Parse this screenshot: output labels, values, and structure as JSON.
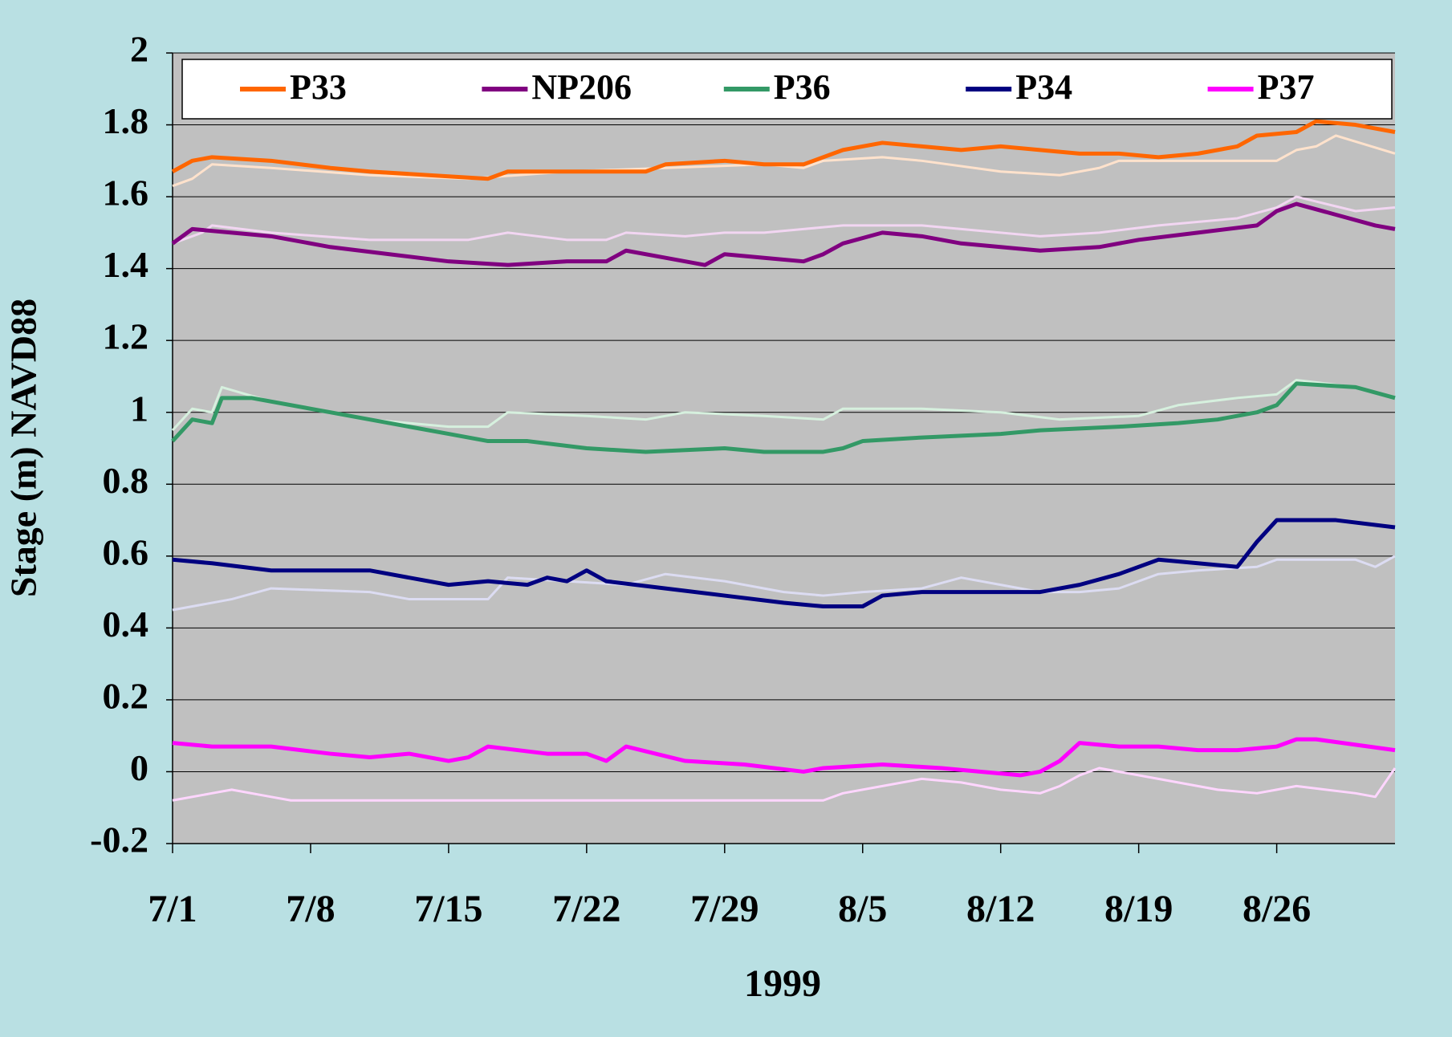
{
  "chart_data": {
    "type": "line",
    "xlabel": "1999",
    "ylabel": "Stage (m) NAVD88",
    "xlim": [
      0,
      62
    ],
    "xticks": [
      {
        "value": 0,
        "label": "7/1"
      },
      {
        "value": 7,
        "label": "7/8"
      },
      {
        "value": 14,
        "label": "7/15"
      },
      {
        "value": 21,
        "label": "7/22"
      },
      {
        "value": 28,
        "label": "7/29"
      },
      {
        "value": 35,
        "label": "8/5"
      },
      {
        "value": 42,
        "label": "8/12"
      },
      {
        "value": 49,
        "label": "8/19"
      },
      {
        "value": 56,
        "label": "8/26"
      }
    ],
    "ylim": [
      -0.2,
      2
    ],
    "yticks": [
      {
        "value": -0.2,
        "label": "-0.2"
      },
      0,
      {
        "value": 0.2,
        "label": "0.2"
      },
      {
        "value": 0.4,
        "label": "0.4"
      },
      {
        "value": 0.6,
        "label": "0.6"
      },
      {
        "value": 0.8,
        "label": "0.8"
      },
      1,
      {
        "value": 1.2,
        "label": "1.2"
      },
      {
        "value": 1.4,
        "label": "1.4"
      },
      {
        "value": 1.6,
        "label": "1.6"
      },
      {
        "value": 1.8,
        "label": "1.8"
      },
      2
    ],
    "grid": true,
    "legend": "top",
    "series": [
      {
        "name": "P33",
        "color": "#ff6600",
        "x": [
          0,
          1,
          2,
          5,
          8,
          10,
          13,
          16,
          17,
          20,
          24,
          25,
          28,
          30,
          32,
          33,
          34,
          36,
          38,
          40,
          42,
          44,
          46,
          48,
          50,
          52,
          54,
          55,
          57,
          58,
          60,
          62
        ],
        "values": [
          1.67,
          1.7,
          1.71,
          1.7,
          1.68,
          1.67,
          1.66,
          1.65,
          1.67,
          1.67,
          1.67,
          1.69,
          1.7,
          1.69,
          1.69,
          1.71,
          1.73,
          1.75,
          1.74,
          1.73,
          1.74,
          1.73,
          1.72,
          1.72,
          1.71,
          1.72,
          1.74,
          1.77,
          1.78,
          1.81,
          1.8,
          1.78
        ]
      },
      {
        "name": "NP206",
        "color": "#800080",
        "x": [
          0,
          1,
          3,
          5,
          8,
          11,
          14,
          17,
          20,
          22,
          23,
          25,
          27,
          28,
          30,
          32,
          33,
          34,
          36,
          38,
          40,
          42,
          44,
          47,
          49,
          52,
          55,
          56,
          57,
          59,
          61,
          62
        ],
        "values": [
          1.47,
          1.51,
          1.5,
          1.49,
          1.46,
          1.44,
          1.42,
          1.41,
          1.42,
          1.42,
          1.45,
          1.43,
          1.41,
          1.44,
          1.43,
          1.42,
          1.44,
          1.47,
          1.5,
          1.49,
          1.47,
          1.46,
          1.45,
          1.46,
          1.48,
          1.5,
          1.52,
          1.56,
          1.58,
          1.55,
          1.52,
          1.51
        ]
      },
      {
        "name": "P36",
        "color": "#339966",
        "x": [
          0,
          1,
          2,
          2.5,
          4,
          8,
          12,
          14,
          16,
          18,
          21,
          24,
          28,
          30,
          33,
          34,
          35,
          38,
          42,
          44,
          48,
          51,
          53,
          55,
          56,
          57,
          60,
          62
        ],
        "values": [
          0.92,
          0.98,
          0.97,
          1.04,
          1.04,
          1.0,
          0.96,
          0.94,
          0.92,
          0.92,
          0.9,
          0.89,
          0.9,
          0.89,
          0.89,
          0.9,
          0.92,
          0.93,
          0.94,
          0.95,
          0.96,
          0.97,
          0.98,
          1.0,
          1.02,
          1.08,
          1.07,
          1.04
        ]
      },
      {
        "name": "P34",
        "color": "#000080",
        "x": [
          0,
          2,
          5,
          10,
          14,
          16,
          18,
          19,
          20,
          21,
          22,
          25,
          28,
          31,
          33,
          35,
          36,
          38,
          42,
          44,
          46,
          48,
          50,
          52,
          54,
          55,
          56,
          59,
          62
        ],
        "values": [
          0.59,
          0.58,
          0.56,
          0.56,
          0.52,
          0.53,
          0.52,
          0.54,
          0.53,
          0.56,
          0.53,
          0.51,
          0.49,
          0.47,
          0.46,
          0.46,
          0.49,
          0.5,
          0.5,
          0.5,
          0.52,
          0.55,
          0.59,
          0.58,
          0.57,
          0.64,
          0.7,
          0.7,
          0.68
        ]
      },
      {
        "name": "P37",
        "color": "#ff00ff",
        "x": [
          0,
          2,
          5,
          8,
          10,
          12,
          14,
          15,
          16,
          19,
          21,
          22,
          23,
          26,
          29,
          32,
          33,
          36,
          39,
          41,
          43,
          44,
          45,
          46,
          48,
          50,
          52,
          54,
          56,
          57,
          58,
          62
        ],
        "values": [
          0.08,
          0.07,
          0.07,
          0.05,
          0.04,
          0.05,
          0.03,
          0.04,
          0.07,
          0.05,
          0.05,
          0.03,
          0.07,
          0.03,
          0.02,
          0.0,
          0.01,
          0.02,
          0.01,
          0.0,
          -0.01,
          0.0,
          0.03,
          0.08,
          0.07,
          0.07,
          0.06,
          0.06,
          0.07,
          0.09,
          0.09,
          0.06
        ]
      },
      {
        "color": "#ffe2cc",
        "x": [
          0,
          1,
          2,
          5,
          10,
          15,
          20,
          25,
          30,
          32,
          33,
          36,
          38,
          42,
          45,
          47,
          48,
          52,
          56,
          57,
          58,
          59,
          62
        ],
        "values": [
          1.63,
          1.65,
          1.69,
          1.68,
          1.66,
          1.65,
          1.67,
          1.68,
          1.69,
          1.68,
          1.7,
          1.71,
          1.7,
          1.67,
          1.66,
          1.68,
          1.7,
          1.7,
          1.7,
          1.73,
          1.74,
          1.77,
          1.72
        ]
      },
      {
        "color": "#f2d6f2",
        "x": [
          0,
          1.5,
          2,
          5,
          10,
          15,
          17,
          20,
          22,
          23,
          26,
          28,
          30,
          32,
          34,
          38,
          40,
          44,
          47,
          50,
          54,
          56,
          57,
          60,
          62
        ],
        "values": [
          1.47,
          1.5,
          1.52,
          1.5,
          1.48,
          1.48,
          1.5,
          1.48,
          1.48,
          1.5,
          1.49,
          1.5,
          1.5,
          1.51,
          1.52,
          1.52,
          1.51,
          1.49,
          1.5,
          1.52,
          1.54,
          1.57,
          1.6,
          1.56,
          1.57
        ]
      },
      {
        "color": "#d6f0de",
        "x": [
          0,
          1,
          2,
          2.5,
          5,
          10,
          14,
          16,
          17,
          21,
          24,
          26,
          30,
          33,
          34,
          38,
          42,
          45,
          49,
          51,
          54,
          56,
          57,
          60,
          62
        ],
        "values": [
          0.95,
          1.01,
          1.0,
          1.07,
          1.03,
          0.98,
          0.96,
          0.96,
          1.0,
          0.99,
          0.98,
          1.0,
          0.99,
          0.98,
          1.01,
          1.01,
          1.0,
          0.98,
          0.99,
          1.02,
          1.04,
          1.05,
          1.09,
          1.07,
          1.04
        ]
      },
      {
        "color": "#dcdcf2",
        "x": [
          0,
          3,
          5,
          10,
          12,
          15,
          16,
          17,
          20,
          23,
          25,
          28,
          31,
          33,
          35,
          38,
          40,
          42,
          44,
          46,
          48,
          50,
          52,
          55,
          56,
          60,
          61,
          62
        ],
        "values": [
          0.45,
          0.48,
          0.51,
          0.5,
          0.48,
          0.48,
          0.48,
          0.54,
          0.53,
          0.52,
          0.55,
          0.53,
          0.5,
          0.49,
          0.5,
          0.51,
          0.54,
          0.52,
          0.5,
          0.5,
          0.51,
          0.55,
          0.56,
          0.57,
          0.59,
          0.59,
          0.57,
          0.6
        ]
      },
      {
        "color": "#ffd6ff",
        "x": [
          0,
          2,
          3,
          5,
          6,
          10,
          20,
          30,
          33,
          34,
          36,
          38,
          40,
          42,
          44,
          45,
          46,
          47,
          50,
          53,
          55,
          56,
          57,
          60,
          61,
          62
        ],
        "values": [
          -0.08,
          -0.06,
          -0.05,
          -0.07,
          -0.08,
          -0.08,
          -0.08,
          -0.08,
          -0.08,
          -0.06,
          -0.04,
          -0.02,
          -0.03,
          -0.05,
          -0.06,
          -0.04,
          -0.01,
          0.01,
          -0.02,
          -0.05,
          -0.06,
          -0.05,
          -0.04,
          -0.06,
          -0.07,
          0.01
        ]
      }
    ]
  }
}
